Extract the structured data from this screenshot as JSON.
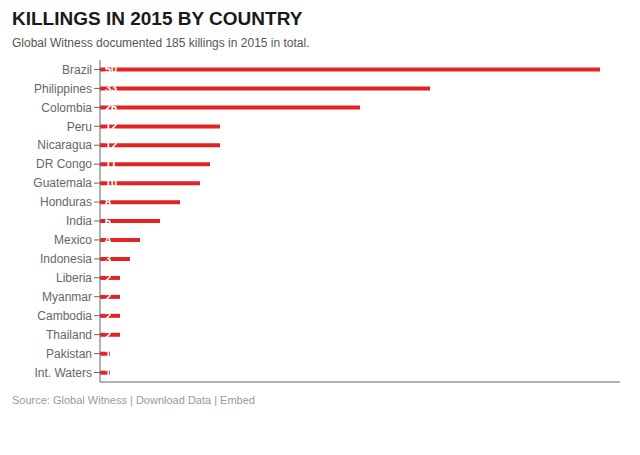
{
  "chart_data": {
    "type": "bar",
    "orientation": "horizontal",
    "title": "KILLINGS IN 2015 BY COUNTRY",
    "subtitle": "Global Witness documented 185 killings in 2015 in total.",
    "categories": [
      "Brazil",
      "Philippines",
      "Colombia",
      "Peru",
      "Nicaragua",
      "DR Congo",
      "Guatemala",
      "Honduras",
      "India",
      "Mexico",
      "Indonesia",
      "Liberia",
      "Myanmar",
      "Cambodia",
      "Thailand",
      "Pakistan",
      "Int. Waters"
    ],
    "values": [
      50,
      33,
      26,
      12,
      12,
      11,
      10,
      8,
      6,
      4,
      3,
      2,
      2,
      2,
      2,
      1,
      1
    ],
    "color": "#e32222",
    "xlim": [
      0,
      52
    ],
    "grid": false,
    "data_labels": true,
    "tick_labels": "y",
    "annotations": [
      "Source: Global Witness | Download Data | Embed"
    ]
  }
}
